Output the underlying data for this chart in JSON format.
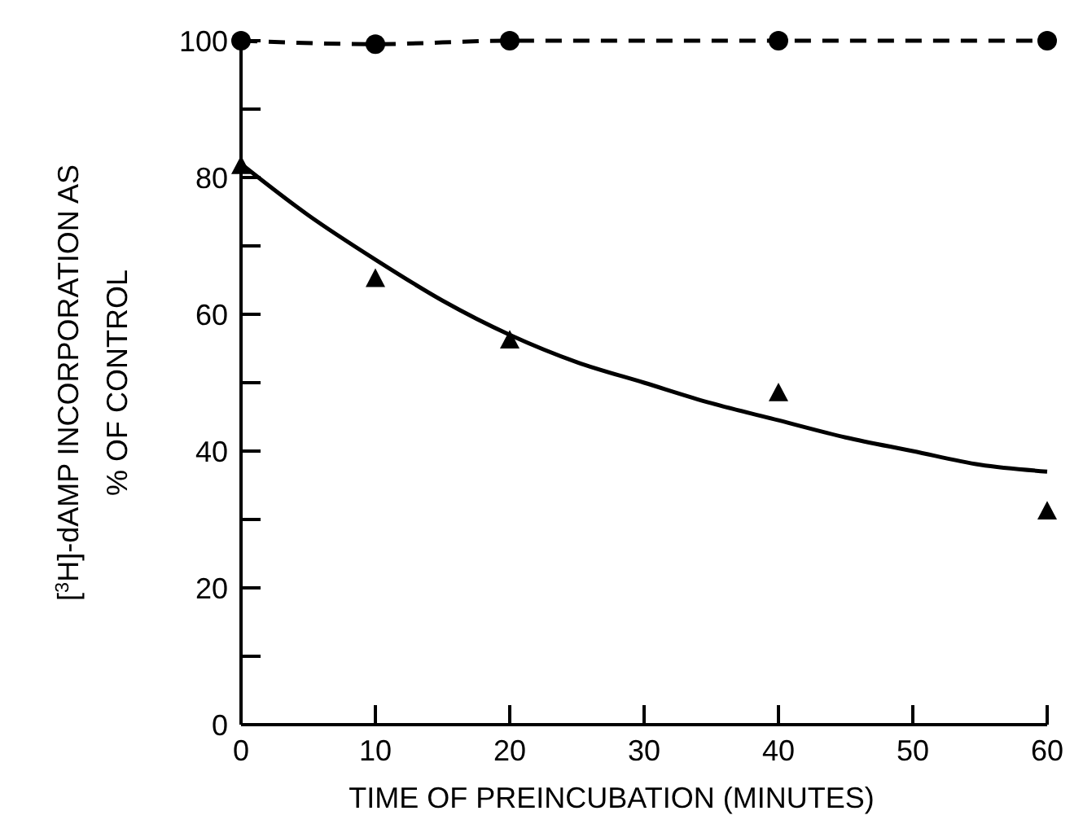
{
  "chart_data": {
    "type": "line",
    "xlabel": "TIME OF PREINCUBATION (MINUTES)",
    "ylabel": "[$^{3}$H]-dAMP INCORPORATION AS % OF CONTROL",
    "x": [
      0,
      10,
      20,
      40,
      60
    ],
    "xlim": [
      0,
      60
    ],
    "xticks": [
      0,
      10,
      20,
      30,
      40,
      50,
      60
    ],
    "ylim": [
      0,
      100
    ],
    "yticks": [
      0,
      {
        "value": 10,
        "label": null
      },
      20,
      {
        "value": 30,
        "label": null
      },
      40,
      {
        "value": 50,
        "label": null
      },
      60,
      {
        "value": 70,
        "label": null
      },
      80,
      {
        "value": 90,
        "label": null
      },
      100
    ],
    "grid": false,
    "series": [
      {
        "color": "#000000",
        "marker": "circle",
        "line_style": "dashed",
        "values": [
          100,
          99.5,
          100,
          100,
          100
        ]
      },
      {
        "type": "scatter",
        "color": "#000000",
        "marker": "triangle",
        "values": [
          81.5,
          65,
          56,
          48.3,
          31
        ]
      },
      {
        "color": "#000000",
        "marker": "none",
        "line_style": "solid",
        "x": [
          0,
          5,
          10,
          15,
          20,
          25,
          30,
          35,
          40,
          45,
          50,
          55,
          60
        ],
        "values": [
          82,
          74.5,
          68,
          62,
          57,
          53,
          50,
          47,
          44.5,
          42,
          40,
          38,
          37
        ]
      }
    ]
  }
}
